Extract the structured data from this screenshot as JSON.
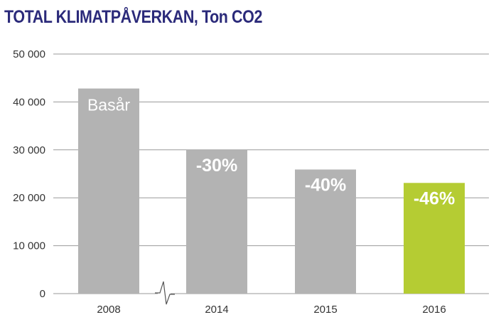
{
  "chart_data": {
    "type": "bar",
    "title": "TOTAL KLIMATPÅVERKAN, Ton CO2",
    "xlabel": "",
    "ylabel": "",
    "categories": [
      "2008",
      "2014",
      "2015",
      "2016"
    ],
    "values": [
      42800,
      30000,
      25900,
      23100
    ],
    "data_labels": [
      "Basår",
      "-30%",
      "-40%",
      "-46%"
    ],
    "ylim": [
      0,
      50000
    ],
    "yticks": [
      0,
      10000,
      20000,
      30000,
      40000,
      50000
    ],
    "ytick_labels": [
      "0",
      "10 000",
      "20 000",
      "30 000",
      "40 000",
      "50 000"
    ],
    "grid": true,
    "axis_break_between": [
      "2008",
      "2014"
    ],
    "colors": {
      "title": "#2b2a7a",
      "bar_default": "#b3b3b3",
      "bar_highlight": "#b5cc33",
      "grid": "#999999",
      "highlight_category": "2016"
    }
  }
}
